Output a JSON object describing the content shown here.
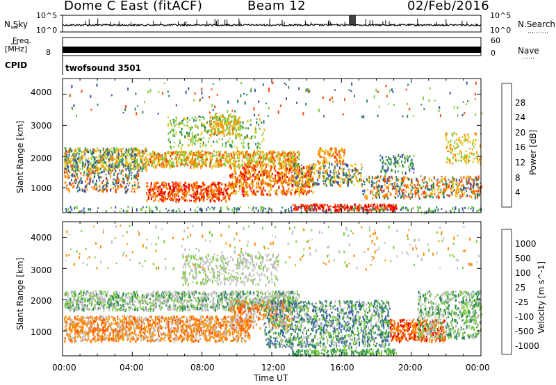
{
  "header": {
    "station": "Dome C East (fitACF)",
    "beam": "Beam 12",
    "date": "02/Feb/2016"
  },
  "noise_panel": {
    "left_label": "N.Sky",
    "right_label": "N.Search",
    "tick_top": "10^5",
    "tick_bottom": "10^0"
  },
  "freq_panel": {
    "left_label_1": "Freq.",
    "left_label_2": "[MHz]",
    "left_tick": "8",
    "right_label": "Nave",
    "right_tick_top": "60",
    "right_tick_bottom": "0"
  },
  "cpid": {
    "label": "CPID",
    "value": "twofsound 3501"
  },
  "colors": {
    "power": [
      "#0000ff",
      "#3a55a8",
      "#2e8b57",
      "#7ccd3c",
      "#e6c419",
      "#ff8c00",
      "#ff4500",
      "#e60000"
    ],
    "velocity": [
      "#0000c8",
      "#3a5ab4",
      "#2e8b57",
      "#7ccd3c",
      "#bfbfbf",
      "#ff8c00",
      "#ff5a00",
      "#e60000"
    ]
  },
  "chart_data": [
    {
      "type": "heatmap",
      "name": "power",
      "ylabel": "Slant Range [km]",
      "xlabel": "",
      "yticks": [
        1000,
        2000,
        3000,
        4000
      ],
      "ylim": [
        200,
        4500
      ],
      "colorbar_label": "Power [dB]",
      "colorbar_ticks": [
        "4",
        "8",
        "12",
        "16",
        "20",
        "24",
        "28"
      ],
      "colorbar_range": [
        0,
        32
      ]
    },
    {
      "type": "heatmap",
      "name": "velocity",
      "ylabel": "Slant Range [km]",
      "xlabel": "Time UT",
      "xticks": [
        "00:00",
        "04:00",
        "08:00",
        "12:00",
        "16:00",
        "20:00",
        "00:00"
      ],
      "yticks": [
        1000,
        2000,
        3000,
        4000
      ],
      "ylim": [
        200,
        4500
      ],
      "colorbar_label": "Velocity [m s^-1]",
      "colorbar_ticks": [
        "1000",
        "500",
        "100",
        "25",
        "-25",
        "-100",
        "-500",
        "-1000"
      ]
    }
  ]
}
